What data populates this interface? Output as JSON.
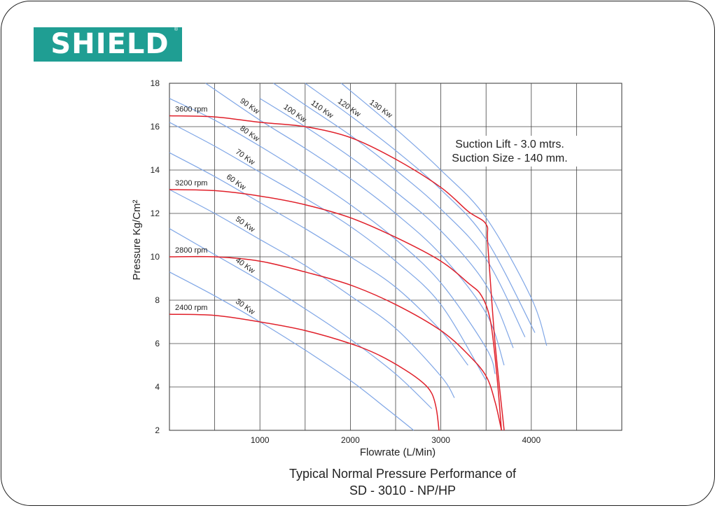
{
  "logo": {
    "text": "SHIELD",
    "registered": "®",
    "color": "#1f9e93"
  },
  "caption": {
    "line1": "Typical Normal Pressure Performance of",
    "line2": "SD - 3010 - NP/HP"
  },
  "chart_data": {
    "type": "line",
    "xlabel": "Flowrate (L/Min)",
    "ylabel": "Pressure Kg/Cm²",
    "xlim": [
      0,
      5000
    ],
    "ylim": [
      2,
      18
    ],
    "xticks": [
      1000,
      2000,
      3000,
      4000
    ],
    "yticks": [
      2,
      4,
      6,
      8,
      10,
      12,
      14,
      16,
      18
    ],
    "grid": true,
    "annotations": [
      "Suction Lift - 3.0 mtrs.",
      "Suction Size - 140 mm."
    ],
    "rpm_color": "#e0202a",
    "power_color": "#7fa6e6",
    "rpm_curves": [
      {
        "name": "3600 rpm",
        "x": [
          0,
          500,
          1000,
          1500,
          2000,
          2500,
          3000,
          3300,
          3500,
          3520,
          3600,
          3700
        ],
        "y": [
          16.5,
          16.45,
          16.2,
          16.0,
          15.5,
          14.5,
          13.2,
          12.1,
          11.5,
          10.5,
          6.0,
          2.0
        ]
      },
      {
        "name": "3200 rpm",
        "x": [
          0,
          500,
          1000,
          1500,
          2000,
          2500,
          3000,
          3300,
          3450,
          3550,
          3620,
          3670
        ],
        "y": [
          13.1,
          13.05,
          12.8,
          12.4,
          11.8,
          10.9,
          9.8,
          8.8,
          8.2,
          7.0,
          4.5,
          2.0
        ]
      },
      {
        "name": "2800 rpm",
        "x": [
          0,
          500,
          1000,
          1500,
          2000,
          2500,
          3000,
          3300,
          3500,
          3600,
          3670
        ],
        "y": [
          10.0,
          10.0,
          9.8,
          9.3,
          8.7,
          7.8,
          6.6,
          5.5,
          4.5,
          3.3,
          2.0
        ]
      },
      {
        "name": "2400 rpm",
        "x": [
          0,
          500,
          1000,
          1500,
          2000,
          2300,
          2600,
          2800,
          2900,
          2950,
          2980
        ],
        "y": [
          7.35,
          7.3,
          7.0,
          6.6,
          6.0,
          5.5,
          4.8,
          4.2,
          3.7,
          3.0,
          2.0
        ]
      }
    ],
    "power_curves": [
      {
        "name": "30 Kw",
        "x": [
          0,
          500,
          1000,
          1500,
          2000,
          2400,
          2700
        ],
        "y": [
          9.3,
          8.2,
          7.0,
          5.7,
          4.3,
          3.0,
          2.0
        ]
      },
      {
        "name": "40 Kw",
        "x": [
          0,
          500,
          1000,
          1500,
          2000,
          2500,
          2900
        ],
        "y": [
          11.3,
          10.1,
          8.9,
          7.6,
          6.2,
          4.6,
          3.0
        ]
      },
      {
        "name": "50 Kw",
        "x": [
          0,
          500,
          1000,
          1500,
          2000,
          2500,
          3000,
          3150
        ],
        "y": [
          13.1,
          12.0,
          10.8,
          9.6,
          8.2,
          6.7,
          4.5,
          3.5
        ]
      },
      {
        "name": "60 Kw",
        "x": [
          0,
          500,
          1000,
          1500,
          2000,
          2500,
          3000,
          3300
        ],
        "y": [
          14.8,
          13.7,
          12.5,
          11.3,
          10.0,
          8.6,
          6.6,
          5.0
        ]
      },
      {
        "name": "70 Kw",
        "x": [
          0,
          500,
          1000,
          1500,
          2000,
          2500,
          3000,
          3500
        ],
        "y": [
          16.2,
          15.1,
          13.9,
          12.7,
          11.4,
          9.8,
          7.8,
          4.3
        ]
      },
      {
        "name": "80 Kw",
        "x": [
          0,
          500,
          1000,
          1500,
          2000,
          2500,
          3000,
          3500,
          3600
        ],
        "y": [
          17.3,
          16.3,
          15.1,
          13.8,
          12.4,
          10.8,
          8.8,
          5.8,
          4.6
        ]
      },
      {
        "name": "90 Kw",
        "x": [
          400,
          1000,
          1500,
          2000,
          2500,
          3000,
          3500,
          3700
        ],
        "y": [
          18.0,
          16.3,
          15.0,
          13.6,
          12.0,
          10.1,
          7.4,
          5.0
        ]
      },
      {
        "name": "100 Kw",
        "x": [
          1000,
          1500,
          2000,
          2500,
          3000,
          3500,
          3800
        ],
        "y": [
          17.3,
          16.0,
          14.6,
          13.0,
          11.2,
          8.7,
          5.8
        ]
      },
      {
        "name": "110 Kw",
        "x": [
          1150,
          1500,
          2000,
          2500,
          3000,
          3500,
          3930
        ],
        "y": [
          18.0,
          17.0,
          15.6,
          14.0,
          12.2,
          9.9,
          6.3
        ]
      },
      {
        "name": "120 Kw",
        "x": [
          1500,
          2000,
          2500,
          3000,
          3500,
          4040
        ],
        "y": [
          18.0,
          16.5,
          14.9,
          13.1,
          10.8,
          6.5
        ]
      },
      {
        "name": "130 Kw",
        "x": [
          1900,
          2500,
          3000,
          3500,
          4000,
          4170
        ],
        "y": [
          18.0,
          15.9,
          14.0,
          11.8,
          8.1,
          5.9
        ]
      }
    ]
  }
}
